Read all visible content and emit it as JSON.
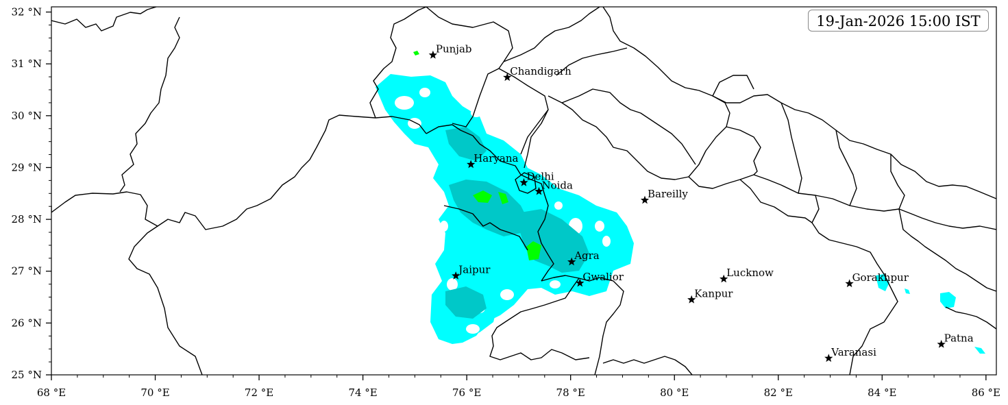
{
  "map": {
    "timestamp": "19-Jan-2026 15:00 IST",
    "extent": {
      "lon_min": 68,
      "lon_max": 86.2,
      "lat_min": 25,
      "lat_max": 32.1
    },
    "lon_ticks": [
      {
        "value": 68,
        "label": "68 °E"
      },
      {
        "value": 70,
        "label": "70 °E"
      },
      {
        "value": 72,
        "label": "72 °E"
      },
      {
        "value": 74,
        "label": "74 °E"
      },
      {
        "value": 76,
        "label": "76 °E"
      },
      {
        "value": 78,
        "label": "78 °E"
      },
      {
        "value": 80,
        "label": "80 °E"
      },
      {
        "value": 82,
        "label": "82 °E"
      },
      {
        "value": 84,
        "label": "84 °E"
      },
      {
        "value": 86,
        "label": "86 °E"
      }
    ],
    "lat_ticks": [
      {
        "value": 25,
        "label": "25 °N"
      },
      {
        "value": 26,
        "label": "26 °N"
      },
      {
        "value": 27,
        "label": "27 °N"
      },
      {
        "value": 28,
        "label": "28 °N"
      },
      {
        "value": 29,
        "label": "29 °N"
      },
      {
        "value": 30,
        "label": "30 °N"
      },
      {
        "value": 31,
        "label": "31 °N"
      },
      {
        "value": 32,
        "label": "32 °N"
      }
    ],
    "cities": [
      {
        "name": "Punjab",
        "lon": 75.35,
        "lat": 31.17
      },
      {
        "name": "Chandigarh",
        "lon": 76.78,
        "lat": 30.74
      },
      {
        "name": "Haryana",
        "lon": 76.08,
        "lat": 29.06
      },
      {
        "name": "Delhi",
        "lon": 77.1,
        "lat": 28.71
      },
      {
        "name": "Noida",
        "lon": 77.39,
        "lat": 28.54
      },
      {
        "name": "Bareilly",
        "lon": 79.43,
        "lat": 28.37
      },
      {
        "name": "Agra",
        "lon": 78.02,
        "lat": 27.18
      },
      {
        "name": "Jaipur",
        "lon": 75.79,
        "lat": 26.91
      },
      {
        "name": "Gwalior",
        "lon": 78.18,
        "lat": 26.77
      },
      {
        "name": "Lucknow",
        "lon": 80.95,
        "lat": 26.85
      },
      {
        "name": "Kanpur",
        "lon": 80.33,
        "lat": 26.45
      },
      {
        "name": "Gorakhpur",
        "lon": 83.37,
        "lat": 26.76
      },
      {
        "name": "Varanasi",
        "lon": 82.97,
        "lat": 25.32
      },
      {
        "name": "Patna",
        "lon": 85.14,
        "lat": 25.59
      }
    ],
    "colors": {
      "light_precip": "#00ffff",
      "moderate_precip": "#00c8c8",
      "heavy_precip": "#00ff00",
      "border": "#000000"
    }
  }
}
